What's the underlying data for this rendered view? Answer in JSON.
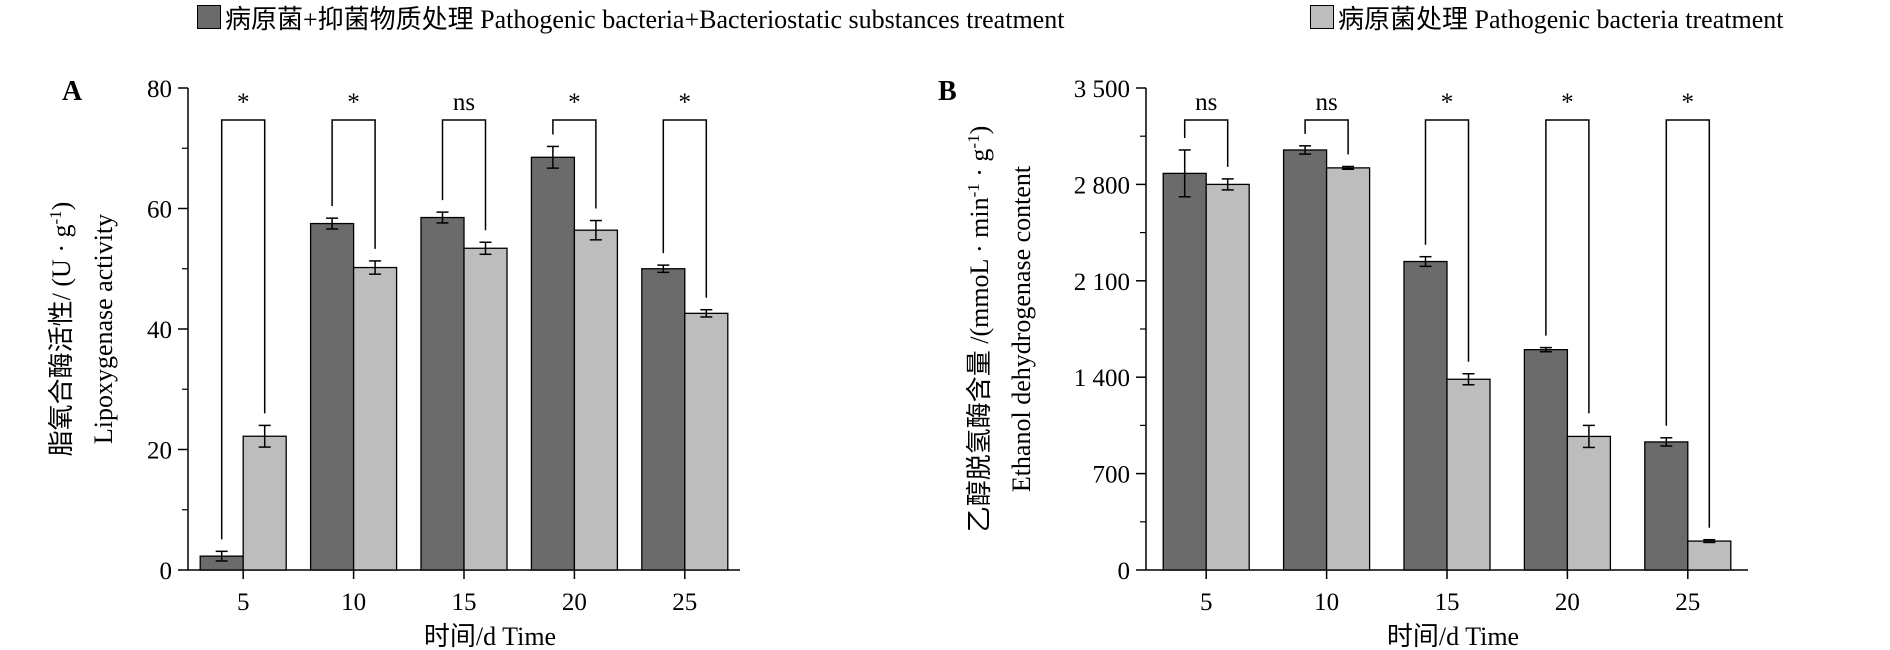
{
  "legend": {
    "items": [
      {
        "label": "病原菌+抑菌物质处理 Pathogenic bacteria+Bacteriostatic substances treatment",
        "color": "#6b6b6b"
      },
      {
        "label": "病原菌处理 Pathogenic bacteria treatment",
        "color": "#bdbdbd"
      }
    ]
  },
  "chart_data": [
    {
      "type": "bar",
      "panel_label": "A",
      "categories": [
        "5",
        "10",
        "15",
        "20",
        "25"
      ],
      "xlabel": "时间/d  Time",
      "ylabel_cn": "脂氧合酶活性/ (U · g-1)",
      "ylabel_cn_parts": {
        "main": "脂氧合酶活性/ (U · g",
        "sup": "-1",
        "tail": ")"
      },
      "ylabel_en": "Lipoxygenase activity",
      "ylim": [
        0,
        80
      ],
      "yticks": [
        0,
        20,
        40,
        60,
        80
      ],
      "ytick_labels": [
        "0",
        "20",
        "40",
        "60",
        "80"
      ],
      "series": [
        {
          "values": [
            2.3,
            57.5,
            58.5,
            68.5,
            50.0
          ],
          "errors": [
            0.8,
            0.9,
            0.9,
            1.8,
            0.6
          ],
          "color": "#6b6b6b"
        },
        {
          "values": [
            22.2,
            50.2,
            53.4,
            56.4,
            42.6
          ],
          "errors": [
            1.8,
            1.1,
            1.0,
            1.6,
            0.6
          ],
          "color": "#bdbdbd"
        }
      ],
      "significance": [
        "*",
        "*",
        "ns",
        "*",
        "*"
      ],
      "grid": false
    },
    {
      "type": "bar",
      "panel_label": "B",
      "categories": [
        "5",
        "10",
        "15",
        "20",
        "25"
      ],
      "xlabel": "时间/d  Time",
      "ylabel_cn": "乙醇脱氢酶含量 /(mmoL · min-1 · g-1)",
      "ylabel_cn_parts": {
        "main": "乙醇脱氢酶含量 /(mmoL · min",
        "sup": "-1",
        "mid": " · g",
        "sup2": "-1",
        "tail": ")"
      },
      "ylabel_en": "Ethanol dehydrogenase content",
      "ylim": [
        0,
        3500
      ],
      "yticks": [
        0,
        700,
        1400,
        2100,
        2800,
        3500
      ],
      "ytick_labels": [
        "0",
        "700",
        "1 400",
        "2 100",
        "2 800",
        "3 500"
      ],
      "series": [
        {
          "values": [
            2880,
            3050,
            2240,
            1600,
            930
          ],
          "errors": [
            170,
            30,
            35,
            15,
            30
          ],
          "color": "#6b6b6b"
        },
        {
          "values": [
            2800,
            2920,
            1385,
            970,
            210
          ],
          "errors": [
            40,
            10,
            40,
            80,
            10
          ],
          "color": "#bdbdbd"
        }
      ],
      "significance": [
        "ns",
        "ns",
        "*",
        "*",
        "*"
      ],
      "grid": false
    }
  ]
}
